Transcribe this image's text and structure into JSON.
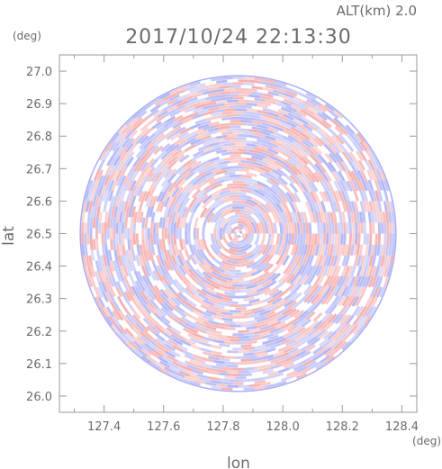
{
  "header": {
    "alt_label": "ALT(km)  2.0",
    "timestamp": "2017/10/24 22:13:30"
  },
  "chart_data": {
    "type": "heatmap",
    "title": "2017/10/24 22:13:30",
    "subtitle": "ALT(km)  2.0",
    "xlabel": "lon",
    "ylabel": "lat",
    "x_unit": "(deg)",
    "y_unit": "(deg)",
    "xlim": [
      127.25,
      128.45
    ],
    "ylim": [
      25.95,
      27.05
    ],
    "x_ticks": [
      127.4,
      127.6,
      127.8,
      128.0,
      128.2,
      128.4
    ],
    "x_tick_labels": [
      "127.4",
      "127.6",
      "127.8",
      "128.0",
      "128.2",
      "128.4"
    ],
    "y_ticks": [
      26.0,
      26.1,
      26.2,
      26.3,
      26.4,
      26.5,
      26.6,
      26.7,
      26.8,
      26.9,
      27.0
    ],
    "y_tick_labels": [
      "26.0",
      "26.1",
      "26.2",
      "26.3",
      "26.4",
      "26.5",
      "26.6",
      "26.7",
      "26.8",
      "26.9",
      "27.0"
    ],
    "domain": {
      "shape": "circle",
      "center_lon": 127.85,
      "center_lat": 26.5,
      "radius_deg": 0.53
    },
    "colors": {
      "positive": "#f4a6a6",
      "negative": "#a9aef4",
      "neutral": "#ffffff",
      "frame": "#9a9a9a"
    }
  }
}
